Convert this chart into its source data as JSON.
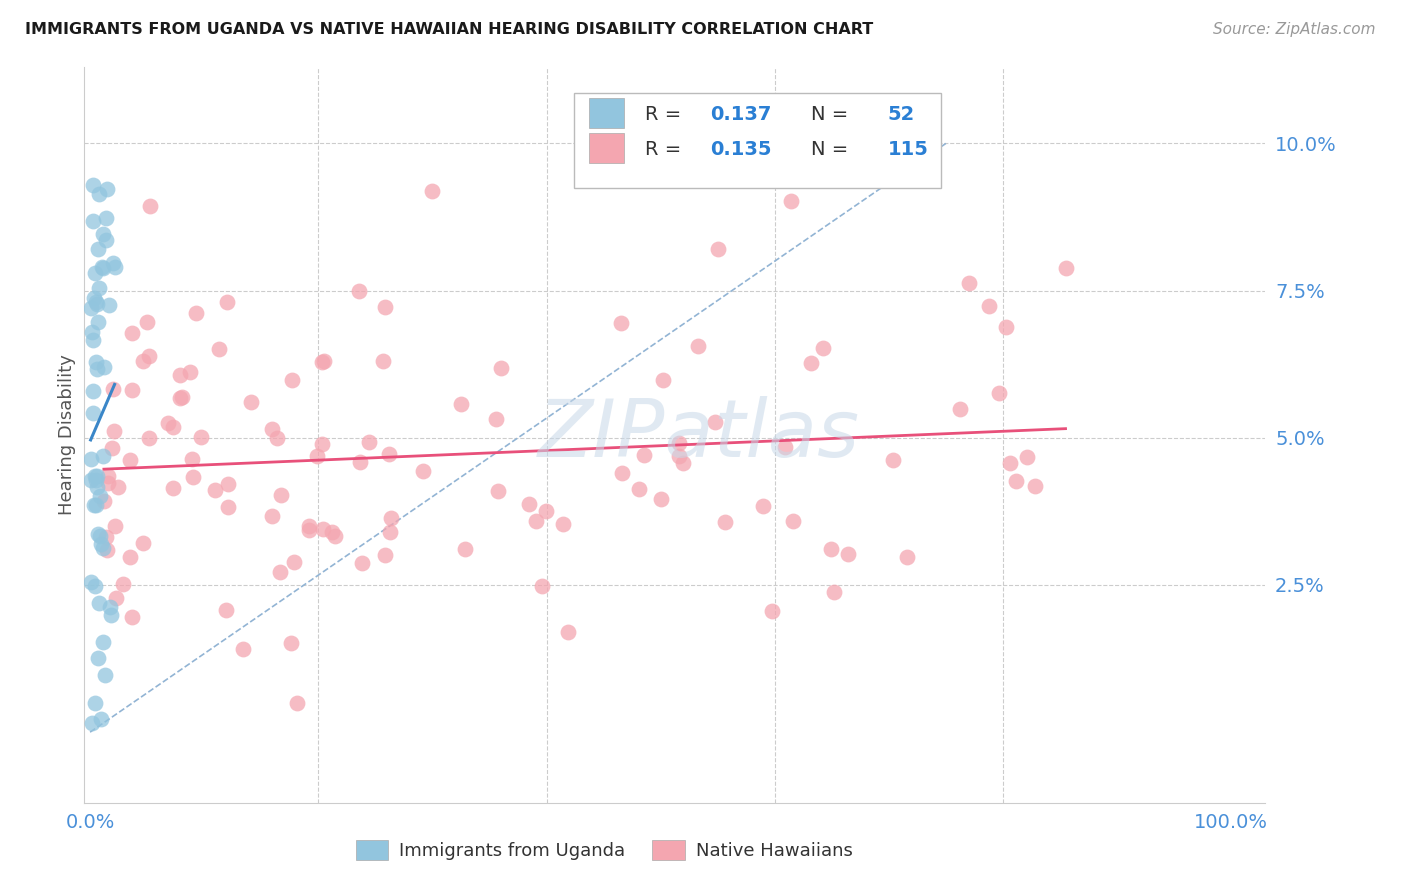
{
  "title": "IMMIGRANTS FROM UGANDA VS NATIVE HAWAIIAN HEARING DISABILITY CORRELATION CHART",
  "source": "Source: ZipAtlas.com",
  "ylabel": "Hearing Disability",
  "blue_color": "#92c5de",
  "pink_color": "#f4a6b0",
  "trend_blue": "#3a86c8",
  "trend_pink": "#e8507a",
  "dash_color": "#92b4d4",
  "watermark_color": "#c8d8e8",
  "background": "#ffffff",
  "grid_color": "#cccccc",
  "tick_color": "#4a90d9",
  "legend_all_blue": "#2a7fd4",
  "legend_border": "#cccccc",
  "ytick_vals": [
    0.025,
    0.05,
    0.075,
    0.1
  ],
  "ytick_labels": [
    "2.5%",
    "5.0%",
    "7.5%",
    "10.0%"
  ],
  "xlim": [
    -0.005,
    1.03
  ],
  "ylim": [
    -0.012,
    0.113
  ]
}
